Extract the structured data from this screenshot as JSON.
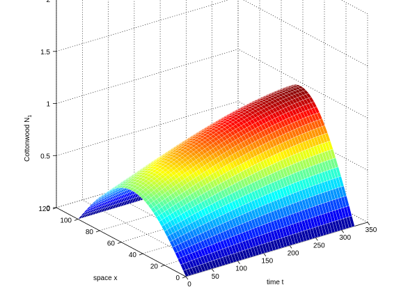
{
  "chart_data": {
    "type": "surface",
    "title": "",
    "xlabel": "time t",
    "ylabel": "space x",
    "zlabel_main": "Cottonwood N",
    "zlabel_sub": "1",
    "x_range": [
      0,
      350
    ],
    "y_range": [
      0,
      120
    ],
    "z_range": [
      0,
      2
    ],
    "x_ticks": [
      "0",
      "50",
      "100",
      "150",
      "200",
      "250",
      "300",
      "350"
    ],
    "y_ticks": [
      "0",
      "20",
      "40",
      "60",
      "80",
      "100",
      "120"
    ],
    "z_ticks": [
      "0",
      "0.5",
      "1",
      "1.5",
      "2"
    ],
    "grid": true,
    "colormap": "jet",
    "surface": {
      "t_values": [
        0,
        25,
        50,
        75,
        100,
        125,
        150,
        175,
        200,
        225,
        250,
        275,
        300,
        325
      ],
      "x_values": [
        0,
        10,
        20,
        30,
        40,
        50,
        60,
        70,
        80,
        90,
        100
      ],
      "peak_start": 0.55,
      "peak_end": 1.07
    }
  }
}
